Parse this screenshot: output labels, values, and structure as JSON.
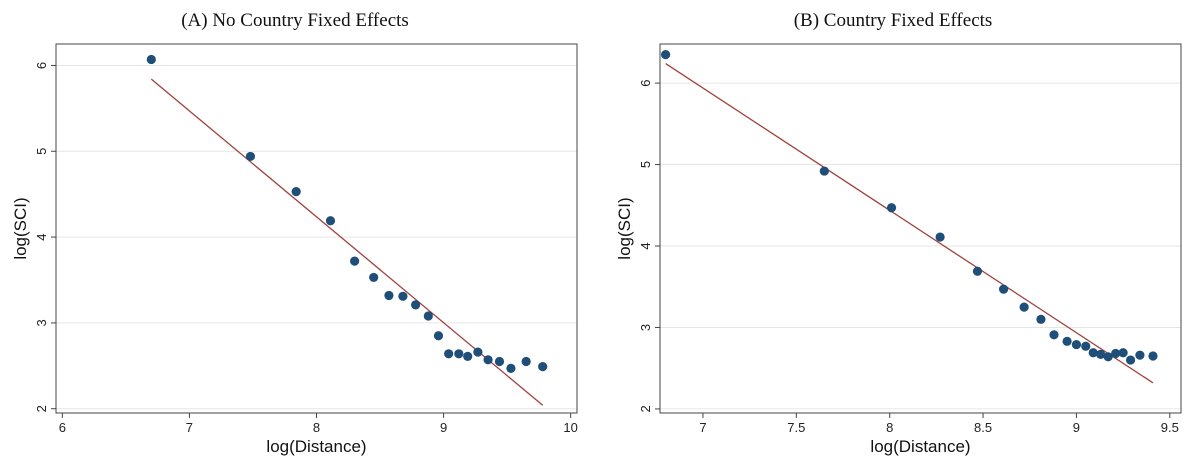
{
  "chart_data": [
    {
      "type": "scatter",
      "title": "(A) No Country Fixed Effects",
      "xlabel": "log(Distance)",
      "ylabel": "log(SCI)",
      "xlim": [
        5.95,
        10.05
      ],
      "ylim": [
        1.95,
        6.25
      ],
      "xticks": [
        6,
        7,
        8,
        9,
        10
      ],
      "yticks": [
        2,
        3,
        4,
        5,
        6
      ],
      "grid": true,
      "marker_color": "#1f4e79",
      "line_color": "#a0403c",
      "points": [
        [
          6.7,
          6.07
        ],
        [
          7.48,
          4.94
        ],
        [
          7.84,
          4.53
        ],
        [
          8.11,
          4.19
        ],
        [
          8.3,
          3.72
        ],
        [
          8.45,
          3.53
        ],
        [
          8.57,
          3.32
        ],
        [
          8.68,
          3.31
        ],
        [
          8.78,
          3.21
        ],
        [
          8.88,
          3.08
        ],
        [
          8.96,
          2.85
        ],
        [
          9.04,
          2.64
        ],
        [
          9.12,
          2.64
        ],
        [
          9.19,
          2.61
        ],
        [
          9.27,
          2.66
        ],
        [
          9.35,
          2.57
        ],
        [
          9.44,
          2.55
        ],
        [
          9.53,
          2.47
        ],
        [
          9.65,
          2.55
        ],
        [
          9.78,
          2.49
        ]
      ],
      "fit_line": [
        [
          6.7,
          5.84
        ],
        [
          9.78,
          2.04
        ]
      ]
    },
    {
      "type": "scatter",
      "title": "(B) Country Fixed Effects",
      "xlabel": "log(Distance)",
      "ylabel": "log(SCI)",
      "xlim": [
        6.77,
        9.56
      ],
      "ylim": [
        1.95,
        6.48
      ],
      "xticks": [
        7,
        7.5,
        8,
        8.5,
        9,
        9.5
      ],
      "yticks": [
        2,
        3,
        4,
        5,
        6
      ],
      "grid": true,
      "marker_color": "#1f4e79",
      "line_color": "#a0403c",
      "points": [
        [
          6.8,
          6.35
        ],
        [
          7.65,
          4.92
        ],
        [
          8.01,
          4.47
        ],
        [
          8.27,
          4.11
        ],
        [
          8.47,
          3.69
        ],
        [
          8.61,
          3.47
        ],
        [
          8.72,
          3.25
        ],
        [
          8.81,
          3.1
        ],
        [
          8.88,
          2.91
        ],
        [
          8.95,
          2.83
        ],
        [
          9.0,
          2.79
        ],
        [
          9.05,
          2.77
        ],
        [
          9.09,
          2.69
        ],
        [
          9.13,
          2.67
        ],
        [
          9.17,
          2.64
        ],
        [
          9.21,
          2.68
        ],
        [
          9.25,
          2.69
        ],
        [
          9.29,
          2.6
        ],
        [
          9.34,
          2.66
        ],
        [
          9.41,
          2.65
        ]
      ],
      "fit_line": [
        [
          6.8,
          6.24
        ],
        [
          9.41,
          2.32
        ]
      ]
    }
  ]
}
